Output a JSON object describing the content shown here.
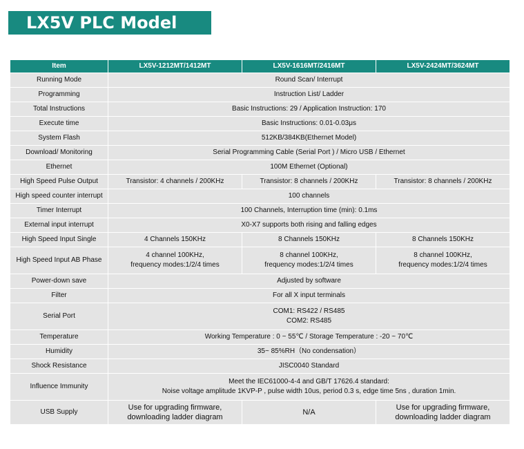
{
  "header": {
    "title": "LX5V PLC Model"
  },
  "table": {
    "columns": [
      "Item",
      "LX5V-1212MT/1412MT",
      "LX5V-1616MT/2416MT",
      "LX5V-2424MT/3624MT"
    ],
    "rows": [
      {
        "item": "Running Mode",
        "values": [
          [
            "Round Scan/ Interrupt"
          ]
        ]
      },
      {
        "item": "Programming",
        "values": [
          [
            "Instruction List/ Ladder"
          ]
        ]
      },
      {
        "item": "Total Instructions",
        "values": [
          [
            "Basic Instructions: 29 / Application Instruction: 170"
          ]
        ]
      },
      {
        "item": "Execute time",
        "values": [
          [
            "Basic Instructions: 0.01-0.03μs"
          ]
        ]
      },
      {
        "item": "System Flash",
        "values": [
          [
            "512KB/384KB(Ethernet Model)"
          ]
        ]
      },
      {
        "item": "Download/ Monitoring",
        "values": [
          [
            "Serial  Programming   Cable (Serial  Port ) / Micro USB / Ethernet"
          ]
        ]
      },
      {
        "item": "Ethernet",
        "values": [
          [
            "100M Ethernet (Optional)"
          ]
        ]
      },
      {
        "item": "High Speed Pulse Output",
        "values": [
          [
            "Transistor: 4 channels / 200KHz"
          ],
          [
            "Transistor: 8 channels / 200KHz"
          ],
          [
            "Transistor: 8 channels / 200KHz"
          ]
        ]
      },
      {
        "item": "High speed counter interrupt",
        "values": [
          [
            "100 channels"
          ]
        ]
      },
      {
        "item": "Timer Interrupt",
        "values": [
          [
            "100 Channels, Interruption time (min): 0.1ms"
          ]
        ]
      },
      {
        "item": "External input interrupt",
        "values": [
          [
            "X0-X7 supports both rising and falling edges"
          ]
        ]
      },
      {
        "item": "High Speed Input Single",
        "values": [
          [
            "4 Channels 150KHz"
          ],
          [
            "8 Channels 150KHz"
          ],
          [
            "8 Channels 150KHz"
          ]
        ]
      },
      {
        "item": "High Speed Input AB Phase",
        "values": [
          [
            "4 channel 100KHz,",
            "frequency modes:1/2/4 times"
          ],
          [
            "8 channel 100KHz,",
            "frequency modes:1/2/4 times"
          ],
          [
            "8 channel 100KHz,",
            "frequency modes:1/2/4 times"
          ]
        ]
      },
      {
        "item": "Power-down save",
        "values": [
          [
            "Adjusted by software"
          ]
        ]
      },
      {
        "item": "Filter",
        "values": [
          [
            "For all X input terminals"
          ]
        ]
      },
      {
        "item": "Serial Port",
        "values": [
          [
            "COM1:  RS422 / RS485",
            "COM2:  RS485"
          ]
        ]
      },
      {
        "item": "Temperature",
        "values": [
          [
            "Working Temperature :  0 ~ 55℃ / Storage Temperature : -20 ~ 70℃"
          ]
        ]
      },
      {
        "item": "Humidity",
        "values": [
          [
            "35~ 85%RH（No condensation）"
          ]
        ]
      },
      {
        "item": "Shock Resistance",
        "values": [
          [
            "JISC0040 Standard"
          ]
        ]
      },
      {
        "item": "Influence Immunity",
        "values": [
          [
            "Meet the IEC61000-4-4 and GB/T 17626.4 standard:",
            "Noise voltage amplitude 1KVP-P , pulse width 10us, period 0.3 s, edge time 5ns , duration 1min."
          ]
        ]
      },
      {
        "item": "USB Supply",
        "values": [
          [
            "Use for upgrading firmware,",
            "downloading ladder diagram"
          ],
          [
            "N/A"
          ],
          [
            "Use for upgrading firmware,",
            "downloading ladder diagram"
          ]
        ]
      }
    ]
  }
}
